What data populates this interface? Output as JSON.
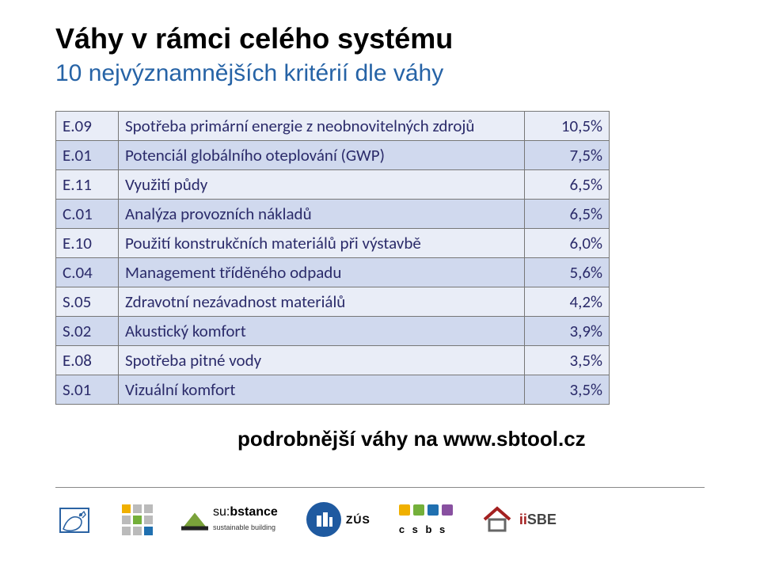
{
  "title": "Váhy v rámci celého systému",
  "subtitle": "10 nejvýznamnějších kritérií dle váhy",
  "table": {
    "row_bg_odd": "#e9edf7",
    "row_bg_even": "#d0d9ee",
    "text_color": "#2b2b6a",
    "rows": [
      {
        "code": "E.09",
        "label": "Spotřeba primární energie z neobnovitelných zdrojů",
        "value": "10,5%"
      },
      {
        "code": "E.01",
        "label": "Potenciál globálního oteplování (GWP)",
        "value": "7,5%"
      },
      {
        "code": "E.11",
        "label": "Využití půdy",
        "value": "6,5%"
      },
      {
        "code": "C.01",
        "label": "Analýza provozních nákladů",
        "value": "6,5%"
      },
      {
        "code": "E.10",
        "label": "Použití konstrukčních materiálů při výstavbě",
        "value": "6,0%"
      },
      {
        "code": "C.04",
        "label": "Management tříděného odpadu",
        "value": "5,6%"
      },
      {
        "code": "S.05",
        "label": "Zdravotní nezávadnost materiálů",
        "value": "4,2%"
      },
      {
        "code": "S.02",
        "label": "Akustický komfort",
        "value": "3,9%"
      },
      {
        "code": "E.08",
        "label": "Spotřeba pitné vody",
        "value": "3,5%"
      },
      {
        "code": "S.01",
        "label": "Vizuální komfort",
        "value": "3,5%"
      }
    ]
  },
  "footer_note": "podrobnější váhy na www.sbtool.cz",
  "logos": {
    "cvut": "cvut-lion",
    "grid": {
      "colors": [
        "#f0b000",
        "#bbbbbb",
        "#bbbbbb",
        "#bbbbbb",
        "#74b03a",
        "#bbbbbb",
        "#bbbbbb",
        "#bbbbbb",
        "#2070b0"
      ]
    },
    "substance": {
      "prefix": "su:",
      "bold": "bstance",
      "tagline": "sustainable building",
      "house_color": "#7aa23a"
    },
    "zus": {
      "bg": "#1f5aa0",
      "text": "ZÚS"
    },
    "csbs": {
      "colors": [
        "#f0b000",
        "#74b03a",
        "#2070b0",
        "#8850a0"
      ],
      "text": "c s b s"
    },
    "iisbe": {
      "roof_color": "#a32020",
      "text_plain": "SBE",
      "text_i": "ii"
    }
  }
}
